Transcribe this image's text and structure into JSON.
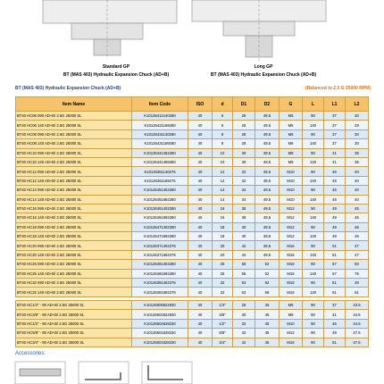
{
  "captions": [
    {
      "title": "Standard GP",
      "subtitle": "BT (MAS 403) Hydraulic Expansion Chuck (AD+B)"
    },
    {
      "title": "Long GP",
      "subtitle": "BT (MAS 403) Hydraulic Expansion Chuck (AD+B)"
    }
  ],
  "section": {
    "title": "BT (MAS 403) Hydraulic Expansion Chuck (AD+B)",
    "note": "(Balanced to 2.5 G 25000 RPM)"
  },
  "table": {
    "columns": [
      "Item Name",
      "Item Code",
      "ISO",
      "d",
      "D1",
      "D2",
      "G",
      "L",
      "L1",
      "L2"
    ],
    "rows": [
      [
        "BT40 HC06 090 AD+B/ 2.5G 25000 SL",
        "K10126412140280",
        "40",
        "6",
        "26",
        "49.5",
        "M5",
        "90",
        "37",
        "30"
      ],
      [
        "BT40 HC06 140 AD+B/ 2.5G 25000 SL",
        "K10126421169280",
        "40",
        "6",
        "26",
        "49.5",
        "M5",
        "140",
        "37",
        "29"
      ],
      [
        "BT40 HC08 090 AD+B/ 2.5G 25000 SL",
        "K10126431140280",
        "40",
        "8",
        "28",
        "49.5",
        "M6",
        "90",
        "37",
        "30"
      ],
      [
        "BT40 HC08 140 AD+B/ 2.5G 25000 SL",
        "K10126431169280",
        "40",
        "8",
        "28",
        "49.5",
        "M6",
        "140",
        "37",
        "30"
      ],
      [
        "BT40 HC10 090 AD+B/ 2.5G 25000 SL",
        "K10126441462280",
        "40",
        "10",
        "30",
        "49.5",
        "M8",
        "90",
        "41",
        "35"
      ],
      [
        "BT40 HC10 140 AD+B/ 2.5G 25000 SL",
        "K10126441469280",
        "40",
        "10",
        "30",
        "49.5",
        "M8",
        "140",
        "41",
        "35"
      ],
      [
        "BT40 HC12 090 AD+B/ 2.5G 25000 SL",
        "K10126361140276",
        "40",
        "12",
        "32",
        "49.5",
        "M10",
        "90",
        "46",
        "40"
      ],
      [
        "BT40 HC12 140 AD+B/ 2.5G 25000 SL",
        "K10126361169276",
        "40",
        "12",
        "32",
        "49.5",
        "M10",
        "140",
        "46",
        "40"
      ],
      [
        "BT40 HC14 090 AD+B/ 2.5G 25000 SL",
        "K10126451402280",
        "40",
        "14",
        "34",
        "49.5",
        "M10",
        "90",
        "46",
        "40"
      ],
      [
        "BT40 HC14 140 AD+B/ 2.5G 25000 SL",
        "K10126451692280",
        "40",
        "14",
        "34",
        "49.5",
        "M10",
        "140",
        "46",
        "40"
      ],
      [
        "BT40 HC16 090 AD+B/ 2.5G 25000 SL",
        "K10126461402280",
        "40",
        "16",
        "38",
        "49.5",
        "M12",
        "90",
        "49",
        "45"
      ],
      [
        "BT40 HC16 140 AD+B/ 2.5G 25000 SL",
        "K10126461692280",
        "40",
        "16",
        "38",
        "49.5",
        "M12",
        "140",
        "49",
        "45"
      ],
      [
        "BT40 HC18 090 AD+B/ 2.5G 25000 SL",
        "K10126471402280",
        "40",
        "18",
        "40",
        "49.5",
        "M12",
        "90",
        "49",
        "46"
      ],
      [
        "BT40 HC18 140 AD+B/ 2.5G 25000 SL",
        "K10126471692280",
        "40",
        "18",
        "40",
        "49.5",
        "M12",
        "140",
        "49",
        "46"
      ],
      [
        "BT40 HC20 090 AD+B/ 2.5G 25000 SL",
        "K10126371402276",
        "40",
        "20",
        "42",
        "49.5",
        "M16",
        "90",
        "51",
        "47"
      ],
      [
        "BT40 HC20 140 AD+B/ 2.5G 25000 SL",
        "K10126371692276",
        "40",
        "20",
        "42",
        "49.5",
        "M16",
        "140",
        "51",
        "47"
      ],
      [
        "BT40 HC25 090 AD+B/ 2.5G 25000 SL",
        "K10126481402280",
        "40",
        "25",
        "55",
        "52",
        "M16",
        "90",
        "57",
        "50"
      ],
      [
        "BT40 HC25 140 AD+B/ 2.5G 25000 SL",
        "K10126481692280",
        "40",
        "25",
        "55",
        "52",
        "M16",
        "140",
        "57",
        "75"
      ],
      [
        "BT40 HC32 090 AD+B/ 2.5G 25000 SL",
        "K10126381402276",
        "40",
        "32",
        "63",
        "62",
        "M16",
        "90",
        "61",
        "48"
      ],
      [
        "BT40 HC32 140 AD+B/ 2.5G 25000 SL",
        "K10126381692276",
        "40",
        "32",
        "63",
        "59",
        "M16",
        "140",
        "61",
        "61"
      ]
    ]
  },
  "table2": {
    "rows": [
      [
        "BT40 HC1/4\" - 90 AD+B/ 2.5G 25000 SL",
        "K10126508622830",
        "40",
        "1/4\"",
        "26",
        "45",
        "M5",
        "90",
        "37",
        "43.5"
      ],
      [
        "BT40 HC3/8\" - 90 AD+B/ 2.5G 25000 SL",
        "K10126502622830",
        "40",
        "3/8\"",
        "30",
        "45",
        "M8",
        "90",
        "41",
        "44.5"
      ],
      [
        "BT40 HC1/2\" - 90 AD+B/ 2.5G 25000 SL",
        "K10126502628230",
        "40",
        "1/2\"",
        "32",
        "45",
        "M10",
        "90",
        "46",
        "44.5"
      ],
      [
        "BT40 HC5/8\" - 90 AD+B/ 2.5G 25000 SL",
        "K10126501628230",
        "40",
        "5/8\"",
        "42",
        "45",
        "M12",
        "90",
        "49",
        "47.5"
      ],
      [
        "BT40 HC3/4\" - 90 AD+B/ 2.5G 25000 SL",
        "K10126501628230",
        "40",
        "3/4\"",
        "42",
        "45",
        "M16",
        "90",
        "51",
        "47.5"
      ]
    ]
  },
  "accessories": {
    "title": "Accessories:"
  }
}
